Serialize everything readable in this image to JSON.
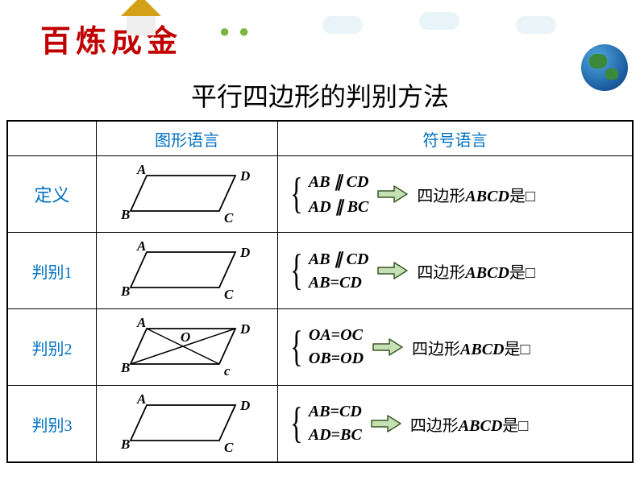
{
  "header": {
    "idiom": "百炼成金",
    "title": "平行四边形的判别方法"
  },
  "table_headers": {
    "col_graphic": "图形语言",
    "col_symbolic": "符号语言"
  },
  "rows": [
    {
      "label": "定义",
      "label_class": "def",
      "shape": "plain",
      "conditions": [
        "AB∥CD",
        "AD∥BC"
      ],
      "conclusion_prefix": "四边形",
      "conclusion_quad": "ABCD",
      "conclusion_suffix": "是□"
    },
    {
      "label": "判别1",
      "shape": "plain",
      "conditions": [
        "AB∥CD",
        "AB=CD"
      ],
      "conclusion_prefix": "四边形",
      "conclusion_quad": "ABCD",
      "conclusion_suffix": "是□"
    },
    {
      "label": "判别2",
      "shape": "diagonals",
      "conditions": [
        "OA=OC",
        "OB=OD"
      ],
      "conclusion_prefix": "四边形",
      "conclusion_quad": "ABCD",
      "conclusion_suffix": "是□"
    },
    {
      "label": "判别3",
      "shape": "plain",
      "conditions": [
        "AB=CD",
        "AD=BC"
      ],
      "conclusion_prefix": "四边形",
      "conclusion_quad": "ABCD",
      "conclusion_suffix": "是□"
    }
  ],
  "vertex_labels": {
    "A": "A",
    "B": "B",
    "C": "C",
    "D": "D",
    "O": "O",
    "c": "c"
  },
  "colors": {
    "header_text": "#0070c0",
    "idiom": "#c00000",
    "border": "#000000",
    "arrow_fill": "#c5e0b4",
    "arrow_stroke": "#385723"
  }
}
